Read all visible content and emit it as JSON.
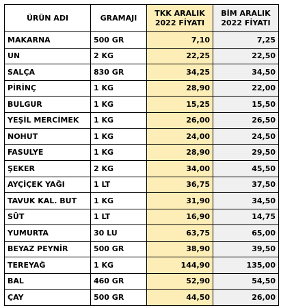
{
  "headers": {
    "name": "ÜRÜN ADI",
    "gram": "GRAMAJI",
    "tkk_line1": "TKK ARALIK",
    "tkk_line2": "2022 FİYATI",
    "bim_line1": "BİM ARALIK",
    "bim_line2": "2022 FİYATI"
  },
  "colors": {
    "tkk_column": "#fdeeb8",
    "bim_column": "#f0f0f0",
    "border": "#000000"
  },
  "rows": [
    {
      "name": "MAKARNA",
      "gram": "500 GR",
      "tkk": "7,10",
      "bim": "7,25"
    },
    {
      "name": "UN",
      "gram": "2 KG",
      "tkk": "22,25",
      "bim": "22,50"
    },
    {
      "name": "SALÇA",
      "gram": "830 GR",
      "tkk": "34,25",
      "bim": "34,50"
    },
    {
      "name": "PİRİNÇ",
      "gram": "1 KG",
      "tkk": "28,90",
      "bim": "22,00"
    },
    {
      "name": "BULGUR",
      "gram": "1 KG",
      "tkk": "15,25",
      "bim": "15,50"
    },
    {
      "name": "YEŞİL MERCİMEK",
      "gram": "1 KG",
      "tkk": "26,00",
      "bim": "26,50"
    },
    {
      "name": "NOHUT",
      "gram": "1 KG",
      "tkk": "24,00",
      "bim": "24,50"
    },
    {
      "name": "FASULYE",
      "gram": "1 KG",
      "tkk": "28,90",
      "bim": "29,50"
    },
    {
      "name": "ŞEKER",
      "gram": "2 KG",
      "tkk": "34,00",
      "bim": "45,50"
    },
    {
      "name": "AYÇİÇEK YAĞI",
      "gram": "1 LT",
      "tkk": "36,75",
      "bim": "37,50"
    },
    {
      "name": "TAVUK KAL.  BUT",
      "gram": "1 KG",
      "tkk": "31,90",
      "bim": "34,50"
    },
    {
      "name": "SÜT",
      "gram": "1 LT",
      "tkk": "16,90",
      "bim": "14,75"
    },
    {
      "name": "YUMURTA",
      "gram": "30 LU",
      "tkk": "63,75",
      "bim": "65,00"
    },
    {
      "name": "BEYAZ PEYNİR",
      "gram": "500 GR",
      "tkk": "38,90",
      "bim": "39,50"
    },
    {
      "name": "TEREYAĞ",
      "gram": "1 KG",
      "tkk": "144,90",
      "bim": "135,00"
    },
    {
      "name": "BAL",
      "gram": "460 GR",
      "tkk": "52,90",
      "bim": "54,50"
    },
    {
      "name": "ÇAY",
      "gram": "500 GR",
      "tkk": "44,50",
      "bim": "26,00"
    }
  ]
}
